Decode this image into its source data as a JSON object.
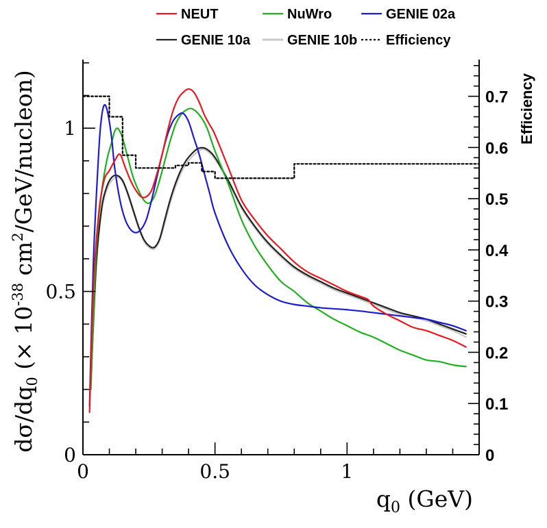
{
  "chart_data": {
    "type": "line",
    "xlabel": "q_0 (GeV)",
    "ylabel": "dσ/dq_0 (× 10^-38 cm^2/GeV/nucleon)",
    "y2label": "Efficiency",
    "xlim": [
      0,
      1.5
    ],
    "ylim": [
      0,
      1.21
    ],
    "y2lim": [
      0,
      0.7717
    ],
    "xticks": [
      {
        "value": 0,
        "label": "0"
      },
      {
        "value": 0.5,
        "label": "0.5"
      },
      {
        "value": 1,
        "label": "1"
      }
    ],
    "yticks": [
      {
        "value": 0,
        "label": "0"
      },
      {
        "value": 0.5,
        "label": "0.5"
      },
      {
        "value": 1,
        "label": "1"
      }
    ],
    "y2ticks": [
      {
        "value": 0,
        "label": "0"
      },
      {
        "value": 0.1,
        "label": "0.1"
      },
      {
        "value": 0.2,
        "label": "0.2"
      },
      {
        "value": 0.3,
        "label": "0.3"
      },
      {
        "value": 0.4,
        "label": "0.4"
      },
      {
        "value": 0.5,
        "label": "0.5"
      },
      {
        "value": 0.6,
        "label": "0.6"
      },
      {
        "value": 0.7,
        "label": "0.7"
      }
    ],
    "legend_position": "top",
    "series": [
      {
        "name": "NEUT",
        "color": "#e8191e",
        "axis": "left",
        "style": "solid",
        "x": [
          0.025,
          0.04,
          0.06,
          0.08,
          0.1,
          0.12,
          0.14,
          0.16,
          0.18,
          0.2,
          0.22,
          0.24,
          0.26,
          0.28,
          0.3,
          0.32,
          0.34,
          0.36,
          0.38,
          0.4,
          0.42,
          0.44,
          0.46,
          0.48,
          0.5,
          0.55,
          0.6,
          0.65,
          0.7,
          0.75,
          0.8,
          0.85,
          0.9,
          0.95,
          1.0,
          1.05,
          1.08,
          1.1,
          1.15,
          1.2,
          1.25,
          1.3,
          1.35,
          1.4,
          1.45
        ],
        "y": [
          0.13,
          0.52,
          0.74,
          0.84,
          0.87,
          0.9,
          0.92,
          0.88,
          0.84,
          0.81,
          0.79,
          0.79,
          0.81,
          0.86,
          0.92,
          0.99,
          1.05,
          1.09,
          1.11,
          1.12,
          1.11,
          1.08,
          1.04,
          1.01,
          0.98,
          0.88,
          0.78,
          0.72,
          0.67,
          0.63,
          0.59,
          0.56,
          0.54,
          0.52,
          0.5,
          0.485,
          0.475,
          0.455,
          0.43,
          0.41,
          0.39,
          0.38,
          0.365,
          0.35,
          0.33
        ]
      },
      {
        "name": "NuWro",
        "color": "#1fb01e",
        "axis": "left",
        "style": "solid",
        "x": [
          0.03,
          0.05,
          0.07,
          0.09,
          0.11,
          0.12,
          0.13,
          0.14,
          0.15,
          0.17,
          0.19,
          0.21,
          0.23,
          0.25,
          0.27,
          0.29,
          0.31,
          0.33,
          0.35,
          0.37,
          0.39,
          0.41,
          0.43,
          0.45,
          0.47,
          0.5,
          0.55,
          0.6,
          0.65,
          0.7,
          0.75,
          0.8,
          0.85,
          0.9,
          0.95,
          1.0,
          1.05,
          1.1,
          1.15,
          1.2,
          1.25,
          1.3,
          1.35,
          1.4,
          1.45
        ],
        "y": [
          0.2,
          0.62,
          0.8,
          0.9,
          0.96,
          0.99,
          1.0,
          0.99,
          0.97,
          0.91,
          0.85,
          0.81,
          0.78,
          0.77,
          0.79,
          0.84,
          0.9,
          0.96,
          1.01,
          1.04,
          1.055,
          1.06,
          1.05,
          1.03,
          1.0,
          0.93,
          0.83,
          0.72,
          0.64,
          0.58,
          0.53,
          0.5,
          0.465,
          0.44,
          0.415,
          0.395,
          0.375,
          0.36,
          0.34,
          0.32,
          0.305,
          0.29,
          0.285,
          0.275,
          0.27
        ]
      },
      {
        "name": "GENIE 02a",
        "color": "#1b1bd0",
        "axis": "left",
        "style": "solid",
        "x": [
          0.025,
          0.04,
          0.06,
          0.07,
          0.08,
          0.09,
          0.1,
          0.11,
          0.12,
          0.14,
          0.16,
          0.18,
          0.2,
          0.22,
          0.24,
          0.26,
          0.28,
          0.3,
          0.32,
          0.34,
          0.36,
          0.38,
          0.4,
          0.42,
          0.44,
          0.46,
          0.48,
          0.5,
          0.55,
          0.6,
          0.65,
          0.7,
          0.75,
          0.8,
          0.85,
          0.9,
          0.95,
          1.0,
          1.05,
          1.1,
          1.15,
          1.2,
          1.25,
          1.3,
          1.35,
          1.4,
          1.45
        ],
        "y": [
          0.15,
          0.6,
          0.93,
          1.03,
          1.07,
          1.06,
          1.02,
          0.96,
          0.88,
          0.78,
          0.72,
          0.69,
          0.68,
          0.69,
          0.72,
          0.78,
          0.85,
          0.92,
          0.98,
          1.02,
          1.04,
          1.045,
          1.02,
          0.97,
          0.92,
          0.86,
          0.8,
          0.74,
          0.64,
          0.57,
          0.52,
          0.49,
          0.47,
          0.46,
          0.455,
          0.45,
          0.447,
          0.444,
          0.44,
          0.435,
          0.43,
          0.425,
          0.42,
          0.415,
          0.405,
          0.395,
          0.38
        ]
      },
      {
        "name": "GENIE 10a",
        "color": "#222222",
        "axis": "left",
        "style": "solid",
        "x": [
          0.03,
          0.05,
          0.07,
          0.09,
          0.11,
          0.13,
          0.15,
          0.17,
          0.19,
          0.21,
          0.23,
          0.25,
          0.27,
          0.29,
          0.31,
          0.33,
          0.35,
          0.37,
          0.39,
          0.41,
          0.43,
          0.45,
          0.47,
          0.5,
          0.55,
          0.6,
          0.65,
          0.7,
          0.75,
          0.8,
          0.85,
          0.9,
          0.95,
          1.0,
          1.05,
          1.1,
          1.15,
          1.2,
          1.25,
          1.3,
          1.35,
          1.4,
          1.45
        ],
        "y": [
          0.22,
          0.58,
          0.75,
          0.82,
          0.85,
          0.855,
          0.84,
          0.8,
          0.75,
          0.7,
          0.66,
          0.64,
          0.635,
          0.66,
          0.72,
          0.78,
          0.83,
          0.87,
          0.9,
          0.92,
          0.935,
          0.94,
          0.935,
          0.91,
          0.84,
          0.76,
          0.7,
          0.65,
          0.61,
          0.575,
          0.55,
          0.53,
          0.51,
          0.495,
          0.48,
          0.465,
          0.45,
          0.435,
          0.425,
          0.415,
          0.4,
          0.385,
          0.37
        ]
      },
      {
        "name": "GENIE 10b",
        "color": "#c8c8c8",
        "axis": "left",
        "style": "solid",
        "x": [
          0.03,
          0.05,
          0.07,
          0.09,
          0.11,
          0.13,
          0.15,
          0.17,
          0.19,
          0.21,
          0.23,
          0.25,
          0.27,
          0.29,
          0.31,
          0.33,
          0.35,
          0.37,
          0.39,
          0.41,
          0.43,
          0.45,
          0.47,
          0.5,
          0.55,
          0.6,
          0.65,
          0.7,
          0.75,
          0.8,
          0.85,
          0.9,
          0.95,
          1.0,
          1.05,
          1.1,
          1.15,
          1.2,
          1.25,
          1.3,
          1.35,
          1.4,
          1.45
        ],
        "y": [
          0.21,
          0.57,
          0.74,
          0.81,
          0.84,
          0.85,
          0.835,
          0.795,
          0.745,
          0.695,
          0.655,
          0.635,
          0.63,
          0.655,
          0.71,
          0.77,
          0.82,
          0.86,
          0.89,
          0.91,
          0.925,
          0.935,
          0.93,
          0.905,
          0.835,
          0.755,
          0.695,
          0.645,
          0.605,
          0.57,
          0.545,
          0.525,
          0.505,
          0.49,
          0.475,
          0.46,
          0.445,
          0.43,
          0.42,
          0.41,
          0.395,
          0.38,
          0.36
        ]
      },
      {
        "name": "Efficiency",
        "color": "#000000",
        "axis": "right",
        "style": "dotted-step",
        "x": [
          0,
          0.05,
          0.1,
          0.15,
          0.2,
          0.3,
          0.35,
          0.4,
          0.45,
          0.5,
          0.6,
          0.7,
          0.8,
          1.0,
          1.2,
          1.4,
          1.5
        ],
        "y": [
          0.7,
          0.7,
          0.66,
          0.585,
          0.56,
          0.56,
          0.565,
          0.57,
          0.553,
          0.54,
          0.54,
          0.54,
          0.568,
          0.568,
          0.568,
          0.568,
          0.568
        ]
      }
    ]
  }
}
